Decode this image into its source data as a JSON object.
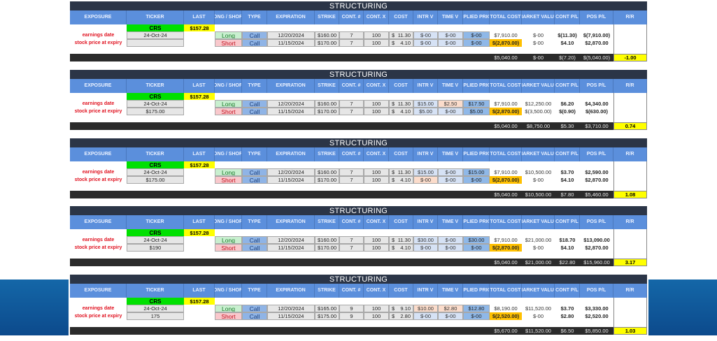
{
  "colors": {
    "header": "#5b8fdc",
    "title_bar": "#2b3547",
    "ticker": "#00e000",
    "last": "#ffff00",
    "rr": "#ffff00",
    "short_total": "#ffc000",
    "background_band": "#1467a8"
  },
  "title": "STRUCTURING",
  "headers": [
    "EXPOSURE",
    "TICKER",
    "LAST",
    "LONG / SHORT",
    "TYPE",
    "EXPIRATION",
    "STRIKE",
    "CONT. #",
    "CONT. X",
    "COST",
    "INTR V",
    "TIME V",
    "IMPLIED PRICE",
    "TOTAL COST",
    "MARKET VALUE",
    "CONT P/L",
    "POS P/L",
    "R/R"
  ],
  "labels": {
    "earnings": "earnings date",
    "expiry": "stock price at expiry"
  },
  "blocks": [
    {
      "ticker": "CRS",
      "last": "$157.28",
      "earnings_date": "24-Oct-24",
      "expiry_price": "",
      "legs": [
        {
          "side": "Long",
          "type": "Call",
          "expiration": "12/20/2024",
          "strike": "160.00",
          "cont": "7",
          "contx": "100",
          "cost": "11.30",
          "intr": "$-00",
          "intr_color": "lblue",
          "time": "$-00",
          "time_color": "lblue",
          "implied": "$-00",
          "total_cost": "$7,910.00",
          "market": "$-00",
          "cont_pl": "$(11.30)",
          "pos_pl": "$(7,910.00)"
        },
        {
          "side": "Short",
          "type": "Call",
          "expiration": "11/15/2024",
          "strike": "170.00",
          "cont": "7",
          "contx": "100",
          "cost": "4.10",
          "intr": "$-00",
          "intr_color": "lblue",
          "time": "$-00",
          "time_color": "lblue",
          "implied": "$-00",
          "total_cost": "$(2,870.00)",
          "market": "$-00",
          "cont_pl": "$4.10",
          "pos_pl": "$2,870.00"
        }
      ],
      "totals": {
        "total_cost": "$5,040.00",
        "market": "$-00",
        "cont_pl": "$(7.20)",
        "pos_pl": "$(5,040.00)",
        "rr": "-1.00"
      }
    },
    {
      "ticker": "CRS",
      "last": "$157.28",
      "earnings_date": "24-Oct-24",
      "expiry_price": "$175.00",
      "legs": [
        {
          "side": "Long",
          "type": "Call",
          "expiration": "12/20/2024",
          "strike": "160.00",
          "cont": "7",
          "contx": "100",
          "cost": "11.30",
          "intr": "$15.00",
          "intr_color": "lblue",
          "time": "$2.50",
          "time_color": "peach",
          "implied": "$17.50",
          "total_cost": "$7,910.00",
          "market": "$12,250.00",
          "cont_pl": "$6.20",
          "pos_pl": "$4,340.00"
        },
        {
          "side": "Short",
          "type": "Call",
          "expiration": "11/15/2024",
          "strike": "170.00",
          "cont": "7",
          "contx": "100",
          "cost": "4.10",
          "intr": "$5.00",
          "intr_color": "lblue",
          "time": "$-00",
          "time_color": "lblue",
          "implied": "$5.00",
          "total_cost": "$(2,870.00)",
          "market": "$(3,500.00)",
          "cont_pl": "$(0.90)",
          "pos_pl": "$(630.00)"
        }
      ],
      "totals": {
        "total_cost": "$5,040.00",
        "market": "$8,750.00",
        "cont_pl": "$5.30",
        "pos_pl": "$3,710.00",
        "rr": "0.74"
      }
    },
    {
      "ticker": "CRS",
      "last": "$157.28",
      "earnings_date": "24-Oct-24",
      "expiry_price": "$175.00",
      "legs": [
        {
          "side": "Long",
          "type": "Call",
          "expiration": "12/20/2024",
          "strike": "160.00",
          "cont": "7",
          "contx": "100",
          "cost": "11.30",
          "intr": "$15.00",
          "intr_color": "lblue",
          "time": "$-00",
          "time_color": "lblue",
          "implied": "$15.00",
          "total_cost": "$7,910.00",
          "market": "$10,500.00",
          "cont_pl": "$3.70",
          "pos_pl": "$2,590.00"
        },
        {
          "side": "Short",
          "type": "Call",
          "expiration": "11/15/2024",
          "strike": "170.00",
          "cont": "7",
          "contx": "100",
          "cost": "4.10",
          "intr": "$-00",
          "intr_color": "peach",
          "time": "$-00",
          "time_color": "lblue",
          "implied": "$-00",
          "total_cost": "$(2,870.00)",
          "market": "$-00",
          "cont_pl": "$4.10",
          "pos_pl": "$2,870.00"
        }
      ],
      "totals": {
        "total_cost": "$5,040.00",
        "market": "$10,500.00",
        "cont_pl": "$7.80",
        "pos_pl": "$5,460.00",
        "rr": "1.08"
      }
    },
    {
      "ticker": "CRS",
      "last": "$157.28",
      "earnings_date": "24-Oct-24",
      "expiry_price": "$190",
      "legs": [
        {
          "side": "Long",
          "type": "Call",
          "expiration": "12/20/2024",
          "strike": "160.00",
          "cont": "7",
          "contx": "100",
          "cost": "11.30",
          "intr": "$30.00",
          "intr_color": "lblue",
          "time": "$-00",
          "time_color": "lblue",
          "implied": "$30.00",
          "total_cost": "$7,910.00",
          "market": "$21,000.00",
          "cont_pl": "$18.70",
          "pos_pl": "$13,090.00"
        },
        {
          "side": "Short",
          "type": "Call",
          "expiration": "11/15/2024",
          "strike": "170.00",
          "cont": "7",
          "contx": "100",
          "cost": "4.10",
          "intr": "$-00",
          "intr_color": "lblue",
          "time": "$-00",
          "time_color": "lblue",
          "implied": "$-00",
          "total_cost": "$(2,870.00)",
          "market": "$-00",
          "cont_pl": "$4.10",
          "pos_pl": "$2,870.00"
        }
      ],
      "totals": {
        "total_cost": "$5,040.00",
        "market": "$21,000.00",
        "cont_pl": "$22.80",
        "pos_pl": "$15,960.00",
        "rr": "3.17"
      }
    },
    {
      "ticker": "CRS",
      "last": "$157.28",
      "earnings_date": "24-Oct-24",
      "expiry_price": "175",
      "legs": [
        {
          "side": "Long",
          "type": "Call",
          "expiration": "12/20/2024",
          "strike": "165.00",
          "cont": "9",
          "contx": "100",
          "cost": "9.10",
          "intr": "$10.00",
          "intr_color": "peach",
          "time": "$2.80",
          "time_color": "peach",
          "implied": "$12.80",
          "total_cost": "$8,190.00",
          "market": "$11,520.00",
          "cont_pl": "$3.70",
          "pos_pl": "$3,330.00"
        },
        {
          "side": "Short",
          "type": "Call",
          "expiration": "11/15/2024",
          "strike": "175.00",
          "cont": "9",
          "contx": "100",
          "cost": "2.80",
          "intr": "$-00",
          "intr_color": "lblue",
          "time": "$-00",
          "time_color": "lblue",
          "implied": "$-00",
          "total_cost": "$(2,520.00)",
          "market": "$-00",
          "cont_pl": "$2.80",
          "pos_pl": "$2,520.00"
        }
      ],
      "totals": {
        "total_cost": "$5,670.00",
        "market": "$11,520.00",
        "cont_pl": "$6.50",
        "pos_pl": "$5,850.00",
        "rr": "1.03"
      }
    }
  ]
}
